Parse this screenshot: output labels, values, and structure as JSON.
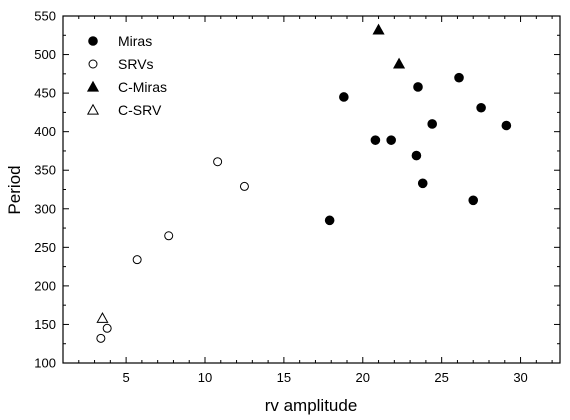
{
  "chart_data": {
    "type": "scatter",
    "xlabel": "rv amplitude",
    "ylabel": "Period",
    "xlim": [
      1,
      32.5
    ],
    "ylim": [
      100,
      550
    ],
    "x_ticks": [
      5,
      10,
      15,
      20,
      25,
      30
    ],
    "y_ticks": [
      100,
      150,
      200,
      250,
      300,
      350,
      400,
      450,
      500,
      550
    ],
    "legend_position": "top-left",
    "series": [
      {
        "name": "Miras",
        "marker": "filled-circle",
        "points": [
          {
            "x": 17.9,
            "y": 285
          },
          {
            "x": 18.8,
            "y": 445
          },
          {
            "x": 20.8,
            "y": 389
          },
          {
            "x": 21.8,
            "y": 389
          },
          {
            "x": 23.4,
            "y": 369
          },
          {
            "x": 23.5,
            "y": 458
          },
          {
            "x": 23.8,
            "y": 333
          },
          {
            "x": 24.4,
            "y": 410
          },
          {
            "x": 26.1,
            "y": 470
          },
          {
            "x": 27.0,
            "y": 311
          },
          {
            "x": 27.5,
            "y": 431
          },
          {
            "x": 29.1,
            "y": 408
          }
        ]
      },
      {
        "name": "SRVs",
        "marker": "open-circle",
        "points": [
          {
            "x": 3.4,
            "y": 132
          },
          {
            "x": 3.8,
            "y": 145
          },
          {
            "x": 5.7,
            "y": 234
          },
          {
            "x": 7.7,
            "y": 265
          },
          {
            "x": 10.8,
            "y": 361
          },
          {
            "x": 12.5,
            "y": 329
          }
        ]
      },
      {
        "name": "C-Miras",
        "marker": "filled-triangle",
        "points": [
          {
            "x": 21.0,
            "y": 532
          },
          {
            "x": 22.3,
            "y": 488
          }
        ]
      },
      {
        "name": "C-SRV",
        "marker": "open-triangle",
        "points": [
          {
            "x": 3.5,
            "y": 158
          }
        ]
      }
    ]
  }
}
